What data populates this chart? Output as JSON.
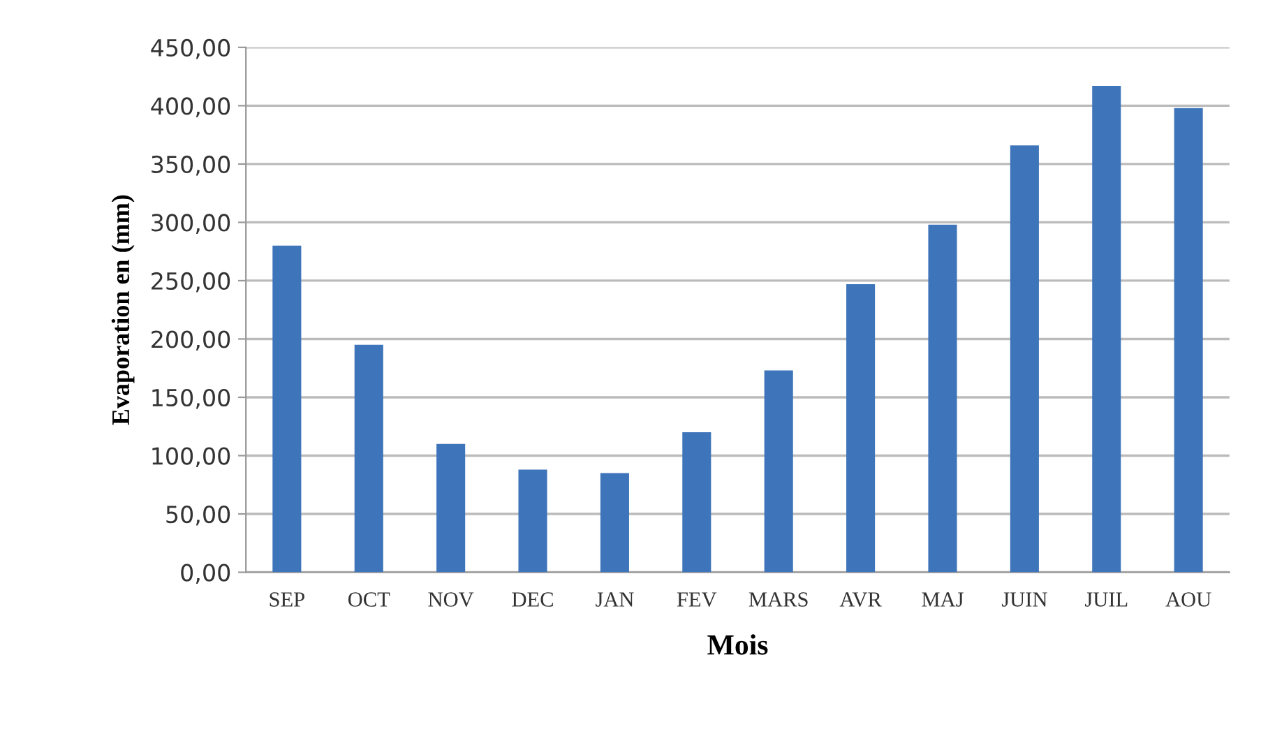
{
  "chart_data": {
    "type": "bar",
    "xlabel": "Mois",
    "ylabel": "Evaporation en (mm)",
    "categories": [
      "SEP",
      "OCT",
      "NOV",
      "DEC",
      "JAN",
      "FEV",
      "MARS",
      "AVR",
      "MAJ",
      "JUIN",
      "JUIL",
      "AOU"
    ],
    "values": [
      280,
      195,
      110,
      88,
      85,
      120,
      173,
      247,
      298,
      366,
      417,
      398
    ],
    "color": "#3e74b9",
    "ylim": [
      0,
      450
    ],
    "yticks": [
      {
        "value": 0,
        "label": "0,00"
      },
      {
        "value": 50,
        "label": "50,00"
      },
      {
        "value": 100,
        "label": "100,00"
      },
      {
        "value": 150,
        "label": "150,00"
      },
      {
        "value": 200,
        "label": "200,00"
      },
      {
        "value": 250,
        "label": "250,00"
      },
      {
        "value": 300,
        "label": "300,00"
      },
      {
        "value": 350,
        "label": "350,00"
      },
      {
        "value": 400,
        "label": "400,00"
      },
      {
        "value": 450,
        "label": "450,00"
      }
    ],
    "grid": "y",
    "legend": false
  }
}
